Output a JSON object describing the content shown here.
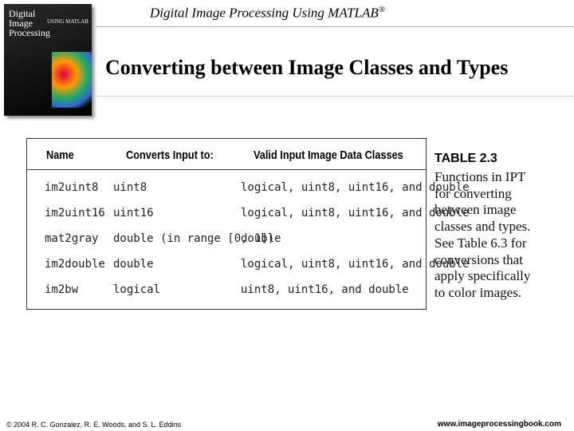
{
  "header": {
    "title": "Digital Image Processing Using MATLAB",
    "mark": "®"
  },
  "cover": {
    "lines": [
      "Digital",
      "Image",
      "Processing"
    ],
    "subtitle": "USING MATLAB"
  },
  "slide": {
    "title": "Converting between Image Classes and Types"
  },
  "table": {
    "columns": [
      "Name",
      "Converts Input to:",
      "Valid Input Image Data Classes"
    ],
    "rows": [
      [
        "im2uint8",
        "uint8",
        "logical, uint8, uint16, and double"
      ],
      [
        "im2uint16",
        "uint16",
        "logical, uint8, uint16, and double"
      ],
      [
        "mat2gray",
        "double (in range [0, 1])",
        "double"
      ],
      [
        "im2double",
        "double",
        "logical, uint8, uint16, and double"
      ],
      [
        "im2bw",
        "logical",
        "uint8, uint16, and double"
      ]
    ]
  },
  "caption": {
    "label": "TABLE 2.3",
    "lines": [
      "Functions in IPT",
      "for converting",
      "between image",
      "classes and types.",
      "See Table 6.3 for",
      "conversions that",
      "apply specifically",
      "to color images."
    ]
  },
  "footer": {
    "left": "© 2004 R. C. Gonzalez, R. E. Woods, and S. L. Eddins",
    "right": "www.imageprocessingbook.com"
  }
}
